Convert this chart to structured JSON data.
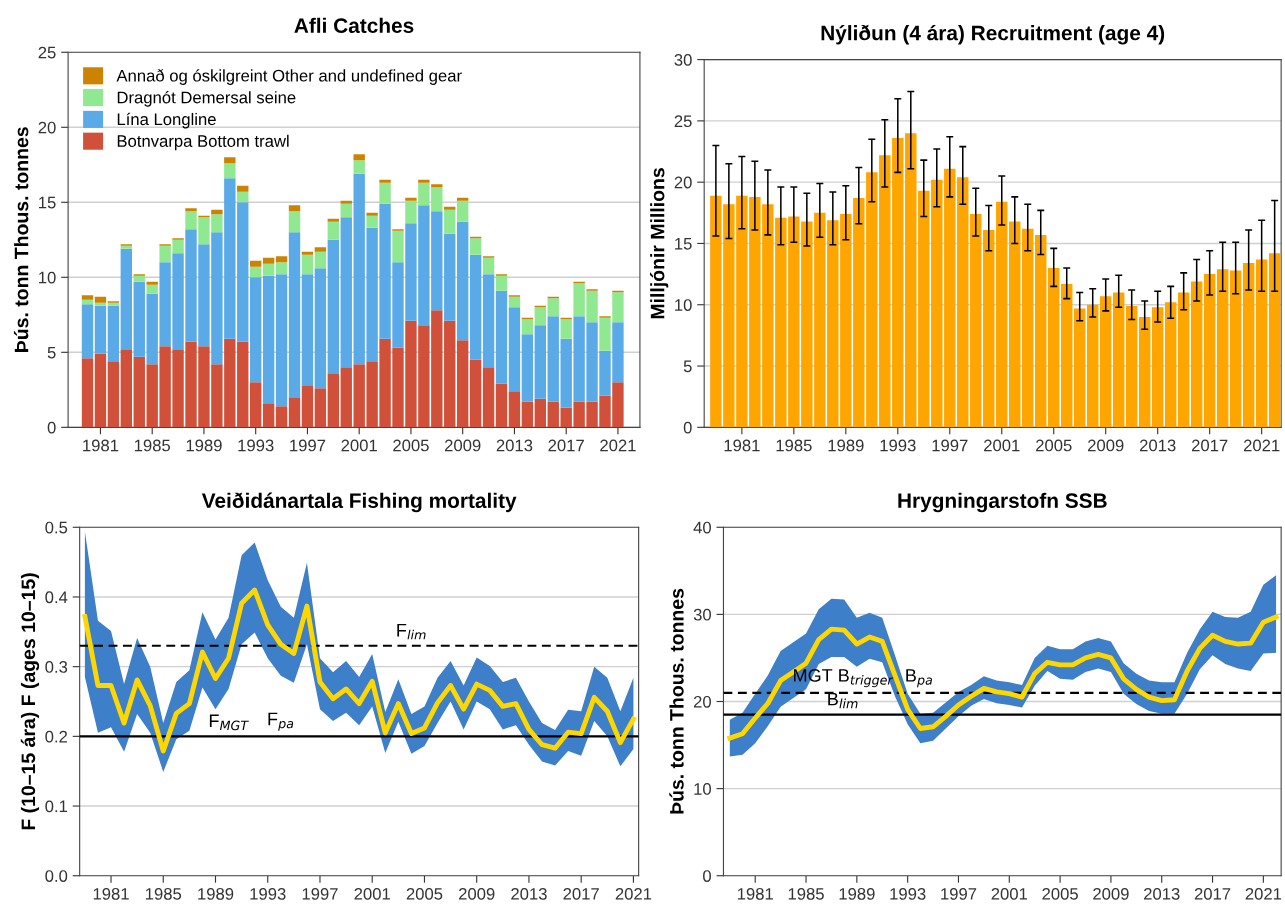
{
  "chart_data": [
    {
      "type": "bar",
      "stacked": true,
      "title": "Afli Catches",
      "ylabel": "Þús. tonn Thous. tonnes",
      "x": [
        1980,
        1981,
        1982,
        1983,
        1984,
        1985,
        1986,
        1987,
        1988,
        1989,
        1990,
        1991,
        1992,
        1993,
        1994,
        1995,
        1996,
        1997,
        1998,
        1999,
        2000,
        2001,
        2002,
        2003,
        2004,
        2005,
        2006,
        2007,
        2008,
        2009,
        2010,
        2011,
        2012,
        2013,
        2014,
        2015,
        2016,
        2017,
        2018,
        2019,
        2020,
        2021
      ],
      "series": [
        {
          "name": "Botnvarpa Bottom trawl",
          "color": "#d0503a",
          "values": [
            4.6,
            4.9,
            4.4,
            5.2,
            4.7,
            4.2,
            5.4,
            5.2,
            5.7,
            5.4,
            4.2,
            5.9,
            5.7,
            3.0,
            1.6,
            1.4,
            2.0,
            2.8,
            2.6,
            3.6,
            4.0,
            4.2,
            4.4,
            5.9,
            5.3,
            7.1,
            6.8,
            7.8,
            7.1,
            5.8,
            4.5,
            4.0,
            2.9,
            2.4,
            1.7,
            1.9,
            1.7,
            1.3,
            1.7,
            1.7,
            2.1,
            3.0
          ]
        },
        {
          "name": "Lína Longline",
          "color": "#5aaae8",
          "values": [
            3.6,
            3.2,
            3.7,
            6.7,
            5.0,
            4.7,
            5.6,
            6.4,
            7.5,
            6.8,
            8.8,
            10.7,
            9.3,
            7.0,
            8.5,
            8.8,
            11.0,
            7.4,
            8.0,
            8.9,
            10.0,
            12.7,
            8.9,
            9.0,
            5.7,
            6.5,
            8.0,
            6.6,
            5.8,
            7.9,
            7.0,
            6.2,
            6.2,
            5.6,
            4.5,
            4.9,
            5.7,
            4.6,
            5.7,
            5.3,
            3.0,
            4.0
          ]
        },
        {
          "name": "Dragnót Demersal seine",
          "color": "#90e890",
          "values": [
            0.3,
            0.2,
            0.2,
            0.2,
            0.4,
            0.6,
            1.1,
            0.9,
            1.2,
            1.8,
            1.2,
            1.0,
            0.7,
            0.7,
            0.8,
            0.8,
            1.4,
            1.3,
            1.1,
            1.2,
            0.9,
            0.9,
            0.8,
            1.4,
            2.1,
            1.5,
            1.5,
            1.6,
            1.6,
            1.4,
            1.1,
            1.1,
            1.0,
            0.7,
            1.0,
            1.2,
            1.2,
            1.3,
            2.2,
            2.1,
            2.2,
            2.0
          ]
        },
        {
          "name": "Annað og óskilgreint Other and undefined gear",
          "color": "#cc8400",
          "values": [
            0.3,
            0.4,
            0.1,
            0.1,
            0.1,
            0.2,
            0.1,
            0.1,
            0.2,
            0.1,
            0.3,
            0.4,
            0.4,
            0.4,
            0.4,
            0.4,
            0.4,
            0.2,
            0.3,
            0.2,
            0.2,
            0.4,
            0.2,
            0.2,
            0.1,
            0.2,
            0.2,
            0.2,
            0.2,
            0.2,
            0.1,
            0.1,
            0.1,
            0.1,
            0.1,
            0.1,
            0.1,
            0.1,
            0.1,
            0.1,
            0.1,
            0.1
          ]
        }
      ],
      "xlim": [
        1978.5,
        2022.7
      ],
      "xticks": [
        1981,
        1985,
        1989,
        1993,
        1997,
        2001,
        2005,
        2009,
        2013,
        2017,
        2021
      ],
      "ylim": [
        0,
        25
      ],
      "yticks": [
        0,
        5,
        10,
        15,
        20,
        25
      ],
      "grid": "y",
      "legend": "top left"
    },
    {
      "type": "bar",
      "title": "Nýliðun (4 ára) Recruitment (age 4)",
      "ylabel": "Milljónir Millions",
      "x": [
        1979,
        1980,
        1981,
        1982,
        1983,
        1984,
        1985,
        1986,
        1987,
        1988,
        1989,
        1990,
        1991,
        1992,
        1993,
        1994,
        1995,
        1996,
        1997,
        1998,
        1999,
        2000,
        2001,
        2002,
        2003,
        2004,
        2005,
        2006,
        2007,
        2008,
        2009,
        2010,
        2011,
        2012,
        2013,
        2014,
        2015,
        2016,
        2017,
        2018,
        2019,
        2020,
        2021,
        2022
      ],
      "color": "#ffa500",
      "values": [
        18.9,
        18.2,
        18.9,
        18.8,
        18.2,
        17.1,
        17.2,
        16.8,
        17.5,
        16.9,
        17.4,
        18.7,
        20.8,
        22.2,
        23.6,
        24.0,
        19.3,
        20.2,
        21.1,
        20.4,
        17.4,
        16.1,
        18.4,
        16.8,
        16.2,
        15.7,
        13.0,
        11.7,
        9.7,
        10.0,
        10.7,
        11.0,
        9.9,
        9.0,
        9.8,
        10.2,
        11.0,
        11.9,
        12.5,
        12.9,
        12.8,
        13.4,
        13.7,
        14.2
      ],
      "errors": [
        [
          15.6,
          23.0
        ],
        [
          15.4,
          21.5
        ],
        [
          16.2,
          22.1
        ],
        [
          16.1,
          21.7
        ],
        [
          15.7,
          21.0
        ],
        [
          14.9,
          19.6
        ],
        [
          15.1,
          19.6
        ],
        [
          14.8,
          19.1
        ],
        [
          15.5,
          19.9
        ],
        [
          14.9,
          19.2
        ],
        [
          15.3,
          19.7
        ],
        [
          16.6,
          21.2
        ],
        [
          18.4,
          23.5
        ],
        [
          19.6,
          25.1
        ],
        [
          20.8,
          26.8
        ],
        [
          21.1,
          27.4
        ],
        [
          17.2,
          21.8
        ],
        [
          18.0,
          22.7
        ],
        [
          18.8,
          23.7
        ],
        [
          18.2,
          22.9
        ],
        [
          15.6,
          19.5
        ],
        [
          14.4,
          18.1
        ],
        [
          16.5,
          20.5
        ],
        [
          15.0,
          18.8
        ],
        [
          14.4,
          18.2
        ],
        [
          14.1,
          17.7
        ],
        [
          11.5,
          14.6
        ],
        [
          10.5,
          13.0
        ],
        [
          8.7,
          11.0
        ],
        [
          9.0,
          11.3
        ],
        [
          9.5,
          12.1
        ],
        [
          9.8,
          12.4
        ],
        [
          8.8,
          11.2
        ],
        [
          8.0,
          10.3
        ],
        [
          8.6,
          11.1
        ],
        [
          8.9,
          11.5
        ],
        [
          9.6,
          12.6
        ],
        [
          10.3,
          13.7
        ],
        [
          10.8,
          14.4
        ],
        [
          11.1,
          15.1
        ],
        [
          10.9,
          15.1
        ],
        [
          11.2,
          16.1
        ],
        [
          11.1,
          16.9
        ],
        [
          11.1,
          18.5
        ]
      ],
      "xlim": [
        1978.1,
        2022.5
      ],
      "xticks": [
        1981,
        1985,
        1989,
        1993,
        1997,
        2001,
        2005,
        2009,
        2013,
        2017,
        2021
      ],
      "ylim": [
        0,
        30
      ],
      "yticks": [
        0,
        5,
        10,
        15,
        20,
        25,
        30
      ],
      "grid": "y"
    },
    {
      "type": "line",
      "title": "Veiðidánartala Fishing mortality",
      "ylabel": "F (10–15 ára) F (ages 10–15)",
      "x": [
        1979,
        1980,
        1981,
        1982,
        1983,
        1984,
        1985,
        1986,
        1987,
        1988,
        1989,
        1990,
        1991,
        1992,
        1993,
        1994,
        1995,
        1996,
        1997,
        1998,
        1999,
        2000,
        2001,
        2002,
        2003,
        2004,
        2005,
        2006,
        2007,
        2008,
        2009,
        2010,
        2011,
        2012,
        2013,
        2014,
        2015,
        2016,
        2017,
        2018,
        2019,
        2020,
        2021
      ],
      "series": [
        {
          "color": "#ffd700",
          "values": [
            0.372,
            0.273,
            0.273,
            0.219,
            0.281,
            0.244,
            0.179,
            0.233,
            0.247,
            0.321,
            0.283,
            0.312,
            0.391,
            0.41,
            0.36,
            0.332,
            0.319,
            0.387,
            0.278,
            0.254,
            0.268,
            0.247,
            0.279,
            0.205,
            0.247,
            0.204,
            0.212,
            0.248,
            0.273,
            0.239,
            0.275,
            0.266,
            0.243,
            0.247,
            0.21,
            0.188,
            0.183,
            0.206,
            0.204,
            0.256,
            0.236,
            0.191,
            0.225
          ],
          "upper": [
            0.494,
            0.366,
            0.351,
            0.275,
            0.341,
            0.3,
            0.219,
            0.278,
            0.295,
            0.378,
            0.339,
            0.37,
            0.46,
            0.478,
            0.424,
            0.386,
            0.37,
            0.449,
            0.312,
            0.292,
            0.308,
            0.285,
            0.318,
            0.235,
            0.282,
            0.232,
            0.243,
            0.284,
            0.308,
            0.273,
            0.313,
            0.301,
            0.278,
            0.284,
            0.25,
            0.219,
            0.209,
            0.238,
            0.236,
            0.3,
            0.284,
            0.236,
            0.284
          ],
          "lower": [
            0.285,
            0.205,
            0.213,
            0.178,
            0.232,
            0.205,
            0.149,
            0.196,
            0.208,
            0.27,
            0.239,
            0.268,
            0.332,
            0.349,
            0.312,
            0.287,
            0.277,
            0.332,
            0.239,
            0.222,
            0.234,
            0.216,
            0.243,
            0.176,
            0.221,
            0.175,
            0.186,
            0.219,
            0.25,
            0.21,
            0.25,
            0.239,
            0.21,
            0.216,
            0.188,
            0.164,
            0.158,
            0.179,
            0.172,
            0.222,
            0.2,
            0.157,
            0.182
          ]
        }
      ],
      "ref_lines": [
        {
          "axis": "y",
          "value": 0.33,
          "line_style": "dashed",
          "color": "#000000"
        },
        {
          "axis": "y",
          "value": 0.2,
          "line_style": "solid",
          "color": "#000000"
        }
      ],
      "annotations": [
        {
          "text": "F$_{lim}$",
          "x": 2004,
          "y": 0.33
        },
        {
          "text": "F$_{MGT}$",
          "x": 1990,
          "y": 0.2
        },
        {
          "text": "F$_{pa}$",
          "x": 1994,
          "y": 0.2
        }
      ],
      "xlim": [
        1978.6,
        2021.4
      ],
      "xticks": [
        1981,
        1985,
        1989,
        1993,
        1997,
        2001,
        2005,
        2009,
        2013,
        2017,
        2021
      ],
      "ylim": [
        0,
        0.5
      ],
      "yticks": [
        {
          "value": 0,
          "label": "0.0"
        },
        0.1,
        0.2,
        0.3,
        0.4,
        0.5
      ],
      "grid": "y"
    },
    {
      "type": "line",
      "title": "Hrygningarstofn SSB",
      "ylabel": "Þús. tonn Thous. tonnes",
      "x": [
        1979,
        1980,
        1981,
        1982,
        1983,
        1984,
        1985,
        1986,
        1987,
        1988,
        1989,
        1990,
        1991,
        1992,
        1993,
        1994,
        1995,
        1996,
        1997,
        1998,
        1999,
        2000,
        2001,
        2002,
        2003,
        2004,
        2005,
        2006,
        2007,
        2008,
        2009,
        2010,
        2011,
        2012,
        2013,
        2014,
        2015,
        2016,
        2017,
        2018,
        2019,
        2020,
        2021,
        2022
      ],
      "series": [
        {
          "color": "#ffd700",
          "values": [
            15.8,
            16.3,
            18.1,
            19.8,
            22.4,
            23.4,
            24.4,
            27.1,
            28.3,
            28.2,
            26.6,
            27.4,
            26.9,
            23.0,
            19.1,
            16.9,
            17.1,
            18.3,
            19.6,
            20.6,
            21.5,
            21.1,
            20.9,
            20.5,
            23.2,
            24.5,
            24.2,
            24.2,
            25.0,
            25.4,
            25.0,
            22.6,
            21.4,
            20.5,
            20.1,
            20.2,
            23.5,
            26.1,
            27.6,
            26.9,
            26.6,
            26.7,
            29.1,
            29.7
          ],
          "upper": [
            17.9,
            18.7,
            20.9,
            23.0,
            25.8,
            26.8,
            27.8,
            30.6,
            31.8,
            31.7,
            29.6,
            30.2,
            29.6,
            25.3,
            20.9,
            18.6,
            18.7,
            19.9,
            21.1,
            21.9,
            22.9,
            22.4,
            22.2,
            21.9,
            25.0,
            26.4,
            26.0,
            26.0,
            26.9,
            27.3,
            26.9,
            24.4,
            23.2,
            22.4,
            22.2,
            22.2,
            25.6,
            28.3,
            30.3,
            29.7,
            29.6,
            30.3,
            33.4,
            34.5
          ],
          "lower": [
            13.7,
            13.9,
            15.2,
            17.2,
            19.4,
            20.4,
            21.4,
            24.3,
            25.1,
            25.1,
            24.0,
            24.9,
            24.5,
            20.6,
            17.4,
            15.2,
            15.5,
            16.9,
            18.3,
            19.5,
            20.3,
            19.8,
            19.6,
            19.3,
            21.8,
            23.5,
            22.6,
            22.5,
            23.4,
            23.8,
            23.4,
            20.9,
            19.7,
            18.9,
            18.6,
            18.6,
            20.9,
            23.7,
            25.3,
            24.3,
            23.8,
            23.5,
            25.5,
            25.6
          ]
        }
      ],
      "ref_lines": [
        {
          "axis": "y",
          "value": 21,
          "line_style": "dashed",
          "color": "#000000"
        },
        {
          "axis": "y",
          "value": 18.5,
          "line_style": "solid",
          "color": "#000000"
        }
      ],
      "annotations": [
        {
          "text": "MGT B$_{trigger}$",
          "x": 1987.9,
          "y": 21
        },
        {
          "text": "B$_{pa}$",
          "x": 1993.9,
          "y": 21
        },
        {
          "text": "B$_{lim}$",
          "x": 1987.9,
          "y": 18.5
        }
      ],
      "xlim": [
        1978.5,
        2022.4
      ],
      "xticks": [
        1981,
        1985,
        1989,
        1993,
        1997,
        2001,
        2005,
        2009,
        2013,
        2017,
        2021
      ],
      "ylim": [
        0,
        40
      ],
      "yticks": [
        0,
        10,
        20,
        30,
        40
      ],
      "grid": "y"
    }
  ]
}
